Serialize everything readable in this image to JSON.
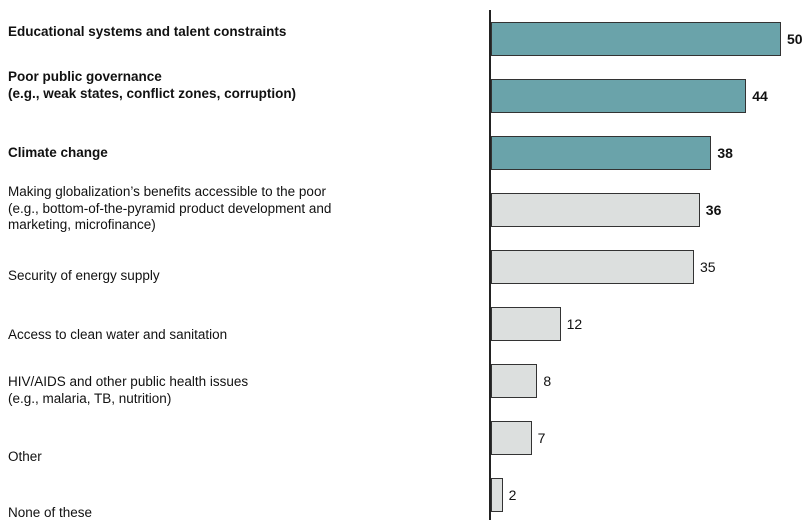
{
  "chart_data": {
    "type": "bar",
    "orientation": "horizontal",
    "categories": [
      "Educational systems and talent constraints",
      "Poor public governance\n(e.g., weak states, conflict zones, corruption)",
      "Climate change",
      "Making globalization’s benefits accessible to the poor\n(e.g., bottom-of-the-pyramid product development and\nmarketing, microfinance)",
      "Security of energy supply",
      "Access to clean water and sanitation",
      "HIV/AIDS and other public health issues\n(e.g., malaria, TB, nutrition)",
      "Other",
      "None of these"
    ],
    "values": [
      50,
      44,
      38,
      36,
      35,
      12,
      8,
      7,
      2
    ],
    "colors": [
      "#6aa3aa",
      "#6aa3aa",
      "#6aa3aa",
      "#dcdfde",
      "#dcdfde",
      "#dcdfde",
      "#dcdfde",
      "#dcdfde",
      "#dcdfde"
    ],
    "bold_labels": [
      true,
      true,
      true,
      false,
      false,
      false,
      false,
      false,
      false
    ],
    "bold_values": [
      true,
      true,
      true,
      true,
      false,
      false,
      false,
      false,
      false
    ]
  }
}
